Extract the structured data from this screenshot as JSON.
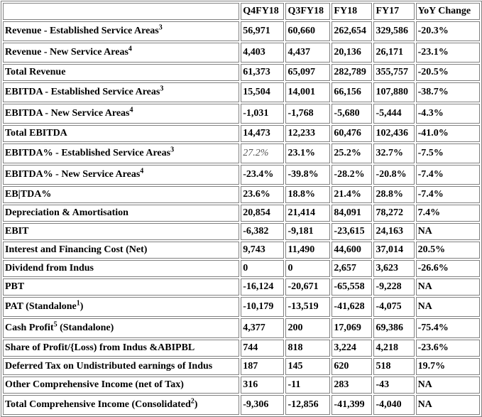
{
  "table": {
    "headers": [
      "",
      "Q4FY18",
      "Q3FY18",
      "FY18",
      "FY17",
      "YoY Change"
    ],
    "rows": [
      {
        "label": "Revenue - Established Service Areas",
        "sup": "3",
        "values": [
          "56,971",
          "60,660",
          "262,654",
          "329,586",
          "-20.3%"
        ]
      },
      {
        "label": "Revenue - New Service Areas",
        "sup": "4",
        "values": [
          "4,403",
          "4,437",
          "20,136",
          "26,171",
          "-23.1%"
        ]
      },
      {
        "label": "Total Revenue",
        "sup": "",
        "values": [
          "61,373",
          "65,097",
          "282,789",
          "355,757",
          "-20.5%"
        ]
      },
      {
        "label": "EBITDA - Established Service Areas",
        "sup": "3",
        "values": [
          "15,504",
          "14,001",
          "66,156",
          "107,880",
          "-38.7%"
        ]
      },
      {
        "label": "EBITDA - New Service Areas",
        "sup": "4",
        "values": [
          "-1,031",
          "-1,768",
          "-5,680",
          "-5,444",
          "-4.3%"
        ]
      },
      {
        "label": "Total EBITDA",
        "sup": "",
        "values": [
          "14,473",
          "12,233",
          "60,476",
          "102,436",
          "-41.0%"
        ]
      },
      {
        "label": "EBITDA% - Established Service Areas",
        "sup": "3",
        "values": [
          "27.2%",
          "23.1%",
          "25.2%",
          "32.7%",
          "-7.5%"
        ]
      },
      {
        "label": "EBITDA% - New Service Areas",
        "sup": "4",
        "values": [
          "-23.4%",
          "-39.8%",
          "-28.2%",
          "-20.8%",
          "-7.4%"
        ]
      },
      {
        "label": "EB|TDA%",
        "sup": "",
        "values": [
          "23.6%",
          "18.8%",
          "21.4%",
          "28.8%",
          "-7.4%"
        ]
      },
      {
        "label": "Depreciation & Amortisation",
        "sup": "",
        "values": [
          "20,854",
          "21,414",
          "84,091",
          "78,272",
          "7.4%"
        ]
      },
      {
        "label": "EBIT",
        "sup": "",
        "values": [
          "-6,382",
          "-9,181",
          "-23,615",
          "24,163",
          "NA"
        ]
      },
      {
        "label": "Interest and Financing Cost (Net)",
        "sup": "",
        "values": [
          "9,743",
          "11,490",
          "44,600",
          "37,014",
          "20.5%"
        ]
      },
      {
        "label": "Dividend from Indus",
        "sup": "",
        "values": [
          "0",
          "0",
          "2,657",
          "3,623",
          "-26.6%"
        ]
      },
      {
        "label": "PBT",
        "sup": "",
        "values": [
          "-16,124",
          "-20,671",
          "-65,558",
          "-9,228",
          "NA"
        ]
      },
      {
        "label": "PAT (Standalone",
        "sup": "1",
        "suffix": ")",
        "values": [
          "-10,179",
          "-13,519",
          "-41,628",
          "-4,075",
          "NA"
        ]
      },
      {
        "label": "Cash Profit",
        "sup": "5",
        "suffix": " (Standalone)",
        "values": [
          "4,377",
          "200",
          "17,069",
          "69,386",
          "-75.4%"
        ]
      },
      {
        "label": "Share of Profit/{Loss) from Indus &ABIPBL",
        "sup": "",
        "values": [
          "744",
          "818",
          "3,224",
          "4,218",
          "-23.6%"
        ]
      },
      {
        "label": "Deferred Tax on Undistributed earnings of Indus",
        "sup": "",
        "values": [
          "187",
          "145",
          "620",
          "518",
          "19.7%"
        ]
      },
      {
        "label": "Other Comprehensive Income (net of Tax)",
        "sup": "",
        "values": [
          "316",
          "-11",
          "283",
          "-43",
          "NA"
        ]
      },
      {
        "label": "Total Comprehensive Income (Consolidated",
        "sup": "2",
        "suffix": ")",
        "values": [
          "-9,306",
          "-12,856",
          "-41,399",
          "-4,040",
          "NA"
        ]
      }
    ],
    "tall_rows": [
      0,
      1,
      3,
      4,
      6,
      7,
      14,
      15,
      19
    ],
    "styled_cells": [
      {
        "row": 6,
        "col": 0,
        "style": "light"
      }
    ]
  }
}
